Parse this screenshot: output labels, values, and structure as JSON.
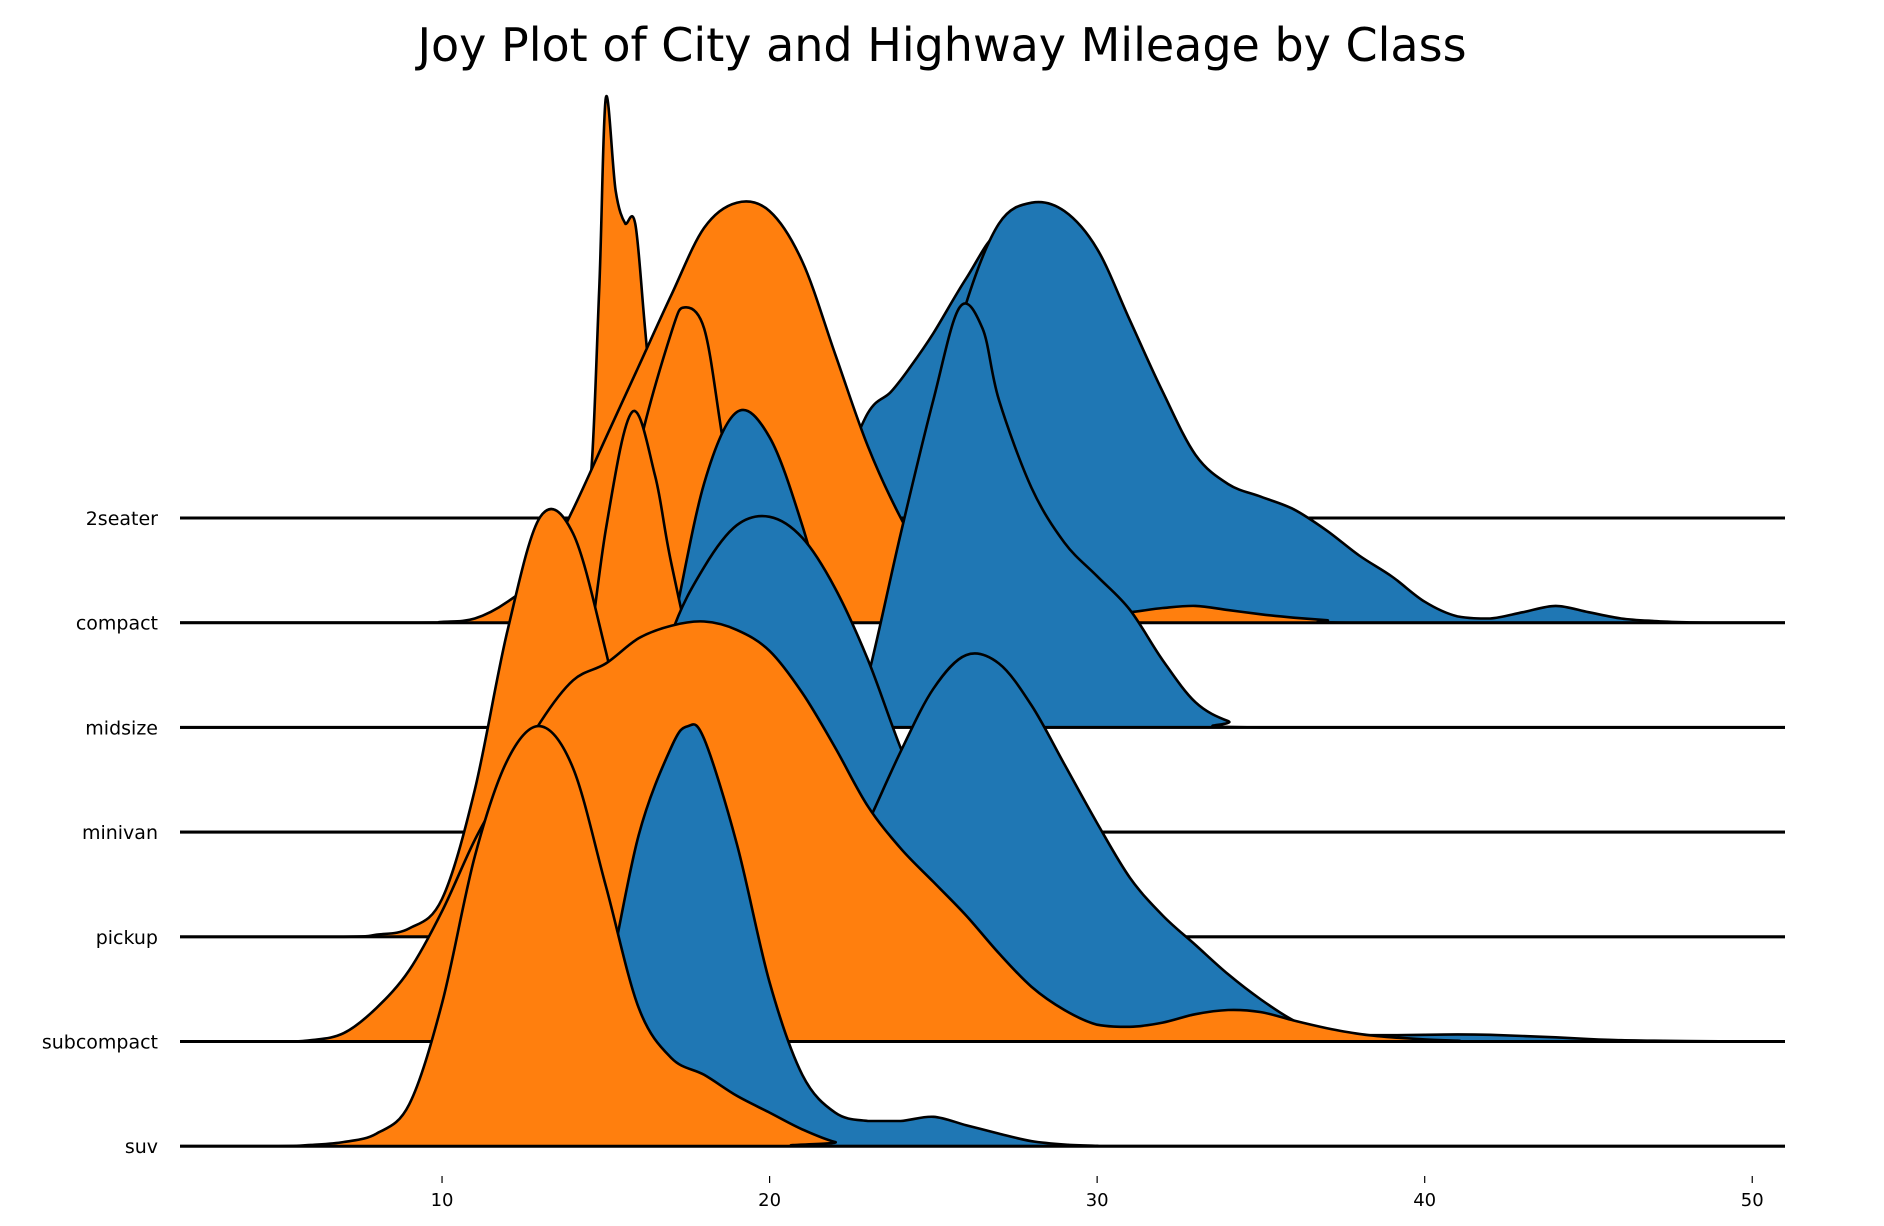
{
  "chart_data": {
    "type": "area",
    "title": "Joy Plot of City and Highway Mileage by Class",
    "xlabel": "",
    "ylabel": "",
    "xlim": [
      2,
      51
    ],
    "x_ticks": [
      10,
      20,
      30,
      40,
      50
    ],
    "grid": false,
    "legend": "none",
    "colors": {
      "cty": "#ff7f0e",
      "hwy": "#1f77b4",
      "line": "#000000"
    },
    "categories": [
      "2seater",
      "compact",
      "midsize",
      "minivan",
      "pickup",
      "subcompact",
      "suv"
    ],
    "series": [
      {
        "category": "2seater",
        "cty": [
          [
            2,
            0
          ],
          [
            14,
            0
          ],
          [
            14.5,
            0.06
          ],
          [
            14.8,
            0.55
          ],
          [
            15,
            1.0
          ],
          [
            15.3,
            0.78
          ],
          [
            15.6,
            0.7
          ],
          [
            15.9,
            0.7
          ],
          [
            16.2,
            0.45
          ],
          [
            16.6,
            0.12
          ],
          [
            17,
            0.03
          ],
          [
            18,
            0
          ],
          [
            51,
            0
          ]
        ],
        "hwy": [
          [
            2,
            0
          ],
          [
            21,
            0
          ],
          [
            22,
            0.08
          ],
          [
            23,
            0.25
          ],
          [
            23.7,
            0.3
          ],
          [
            24.3,
            0.36
          ],
          [
            25,
            0.44
          ],
          [
            26,
            0.57
          ],
          [
            27,
            0.68
          ],
          [
            28,
            0.64
          ],
          [
            29,
            0.5
          ],
          [
            30,
            0.28
          ],
          [
            31,
            0.08
          ],
          [
            32,
            0.02
          ],
          [
            33,
            0
          ],
          [
            51,
            0
          ]
        ]
      },
      {
        "category": "compact",
        "cty": [
          [
            2,
            0
          ],
          [
            9,
            0
          ],
          [
            10,
            0.002
          ],
          [
            11,
            0.01
          ],
          [
            12,
            0.05
          ],
          [
            13,
            0.12
          ],
          [
            14,
            0.27
          ],
          [
            15,
            0.44
          ],
          [
            16,
            0.61
          ],
          [
            17,
            0.78
          ],
          [
            18,
            0.94
          ],
          [
            19,
            1.0
          ],
          [
            20,
            0.98
          ],
          [
            21,
            0.86
          ],
          [
            22,
            0.64
          ],
          [
            23,
            0.42
          ],
          [
            24,
            0.25
          ],
          [
            25,
            0.12
          ],
          [
            26,
            0.06
          ],
          [
            27,
            0.035
          ],
          [
            28,
            0.025
          ],
          [
            29,
            0.02
          ],
          [
            30,
            0.02
          ],
          [
            31,
            0.025
          ],
          [
            32,
            0.035
          ],
          [
            33,
            0.04
          ],
          [
            34,
            0.03
          ],
          [
            35,
            0.02
          ],
          [
            36,
            0.012
          ],
          [
            37,
            0.006
          ],
          [
            38,
            0
          ],
          [
            51,
            0
          ]
        ],
        "hwy": [
          [
            2,
            0
          ],
          [
            22,
            0
          ],
          [
            23,
            0.03
          ],
          [
            24,
            0.14
          ],
          [
            25,
            0.46
          ],
          [
            26,
            0.76
          ],
          [
            27,
            0.95
          ],
          [
            28,
            1.0
          ],
          [
            29,
            0.98
          ],
          [
            30,
            0.89
          ],
          [
            31,
            0.72
          ],
          [
            32,
            0.55
          ],
          [
            33,
            0.4
          ],
          [
            34,
            0.33
          ],
          [
            35,
            0.3
          ],
          [
            36,
            0.27
          ],
          [
            37,
            0.22
          ],
          [
            38,
            0.16
          ],
          [
            39,
            0.11
          ],
          [
            40,
            0.05
          ],
          [
            41,
            0.015
          ],
          [
            42,
            0.01
          ],
          [
            43,
            0.025
          ],
          [
            44,
            0.04
          ],
          [
            45,
            0.025
          ],
          [
            46,
            0.01
          ],
          [
            47,
            0.004
          ],
          [
            48,
            0.001
          ],
          [
            49,
            0
          ],
          [
            51,
            0
          ]
        ]
      },
      {
        "category": "midsize",
        "cty": [
          [
            2,
            0
          ],
          [
            14,
            0
          ],
          [
            14.5,
            0.05
          ],
          [
            15,
            0.24
          ],
          [
            16,
            0.66
          ],
          [
            17,
            0.94
          ],
          [
            17.4,
            1.0
          ],
          [
            18,
            0.95
          ],
          [
            18.5,
            0.72
          ],
          [
            19,
            0.45
          ],
          [
            19.5,
            0.31
          ],
          [
            20,
            0.27
          ],
          [
            20.5,
            0.2
          ],
          [
            21,
            0.1
          ],
          [
            22,
            0.02
          ],
          [
            23,
            0
          ],
          [
            51,
            0
          ]
        ],
        "hwy": [
          [
            2,
            0
          ],
          [
            22,
            0
          ],
          [
            22.5,
            0.03
          ],
          [
            23,
            0.12
          ],
          [
            24,
            0.46
          ],
          [
            25,
            0.78
          ],
          [
            25.8,
            1.0
          ],
          [
            26.5,
            0.95
          ],
          [
            27,
            0.78
          ],
          [
            28,
            0.57
          ],
          [
            29,
            0.44
          ],
          [
            30,
            0.36
          ],
          [
            31,
            0.28
          ],
          [
            32,
            0.16
          ],
          [
            33,
            0.06
          ],
          [
            34,
            0.015
          ],
          [
            35,
            0
          ],
          [
            51,
            0
          ]
        ]
      },
      {
        "category": "minivan",
        "cty": [
          [
            2,
            0
          ],
          [
            12,
            0
          ],
          [
            13,
            0.01
          ],
          [
            14,
            0.17
          ],
          [
            15,
            0.72
          ],
          [
            15.8,
            1.0
          ],
          [
            16.5,
            0.85
          ],
          [
            17,
            0.64
          ],
          [
            18,
            0.3
          ],
          [
            19,
            0.09
          ],
          [
            20,
            0.02
          ],
          [
            21,
            0
          ],
          [
            51,
            0
          ]
        ],
        "hwy": [
          [
            2,
            0
          ],
          [
            15,
            0
          ],
          [
            16,
            0.14
          ],
          [
            17,
            0.47
          ],
          [
            18,
            0.83
          ],
          [
            19,
            1.0
          ],
          [
            20,
            0.94
          ],
          [
            21,
            0.73
          ],
          [
            22,
            0.45
          ],
          [
            23,
            0.22
          ],
          [
            24,
            0.08
          ],
          [
            25,
            0.02
          ],
          [
            26,
            0
          ],
          [
            51,
            0
          ]
        ]
      },
      {
        "category": "pickup",
        "cty": [
          [
            2,
            0
          ],
          [
            7,
            0
          ],
          [
            8,
            0.005
          ],
          [
            9,
            0.02
          ],
          [
            10,
            0.09
          ],
          [
            11,
            0.35
          ],
          [
            12,
            0.73
          ],
          [
            13,
            1.0
          ],
          [
            14,
            0.96
          ],
          [
            15,
            0.68
          ],
          [
            16,
            0.33
          ],
          [
            17,
            0.11
          ],
          [
            18,
            0.03
          ],
          [
            19,
            0.01
          ],
          [
            20,
            0
          ],
          [
            51,
            0
          ]
        ],
        "hwy": [
          [
            2,
            0
          ],
          [
            13,
            0
          ],
          [
            14,
            0.02
          ],
          [
            15,
            0.15
          ],
          [
            16,
            0.43
          ],
          [
            17,
            0.72
          ],
          [
            18,
            0.88
          ],
          [
            19,
            0.98
          ],
          [
            20,
            1.0
          ],
          [
            21,
            0.95
          ],
          [
            22,
            0.83
          ],
          [
            23,
            0.66
          ],
          [
            24,
            0.45
          ],
          [
            25,
            0.27
          ],
          [
            26,
            0.15
          ],
          [
            27,
            0.08
          ],
          [
            28,
            0.04
          ],
          [
            29,
            0.015
          ],
          [
            30,
            0
          ],
          [
            51,
            0
          ]
        ]
      },
      {
        "category": "subcompact",
        "cty": [
          [
            2,
            0
          ],
          [
            5,
            0
          ],
          [
            6,
            0.003
          ],
          [
            7,
            0.02
          ],
          [
            8,
            0.08
          ],
          [
            9,
            0.17
          ],
          [
            10,
            0.31
          ],
          [
            11,
            0.48
          ],
          [
            12,
            0.62
          ],
          [
            13,
            0.76
          ],
          [
            14,
            0.86
          ],
          [
            15,
            0.9
          ],
          [
            16,
            0.96
          ],
          [
            17,
            0.99
          ],
          [
            18,
            1.0
          ],
          [
            19,
            0.98
          ],
          [
            20,
            0.93
          ],
          [
            21,
            0.83
          ],
          [
            22,
            0.7
          ],
          [
            23,
            0.56
          ],
          [
            24,
            0.46
          ],
          [
            25,
            0.38
          ],
          [
            26,
            0.3
          ],
          [
            27,
            0.21
          ],
          [
            28,
            0.13
          ],
          [
            29,
            0.075
          ],
          [
            30,
            0.04
          ],
          [
            31,
            0.035
          ],
          [
            32,
            0.045
          ],
          [
            33,
            0.065
          ],
          [
            34,
            0.075
          ],
          [
            35,
            0.07
          ],
          [
            36,
            0.05
          ],
          [
            37,
            0.032
          ],
          [
            38,
            0.018
          ],
          [
            39,
            0.01
          ],
          [
            40,
            0.005
          ],
          [
            41,
            0.002
          ],
          [
            42,
            0
          ],
          [
            51,
            0
          ]
        ],
        "hwy": [
          [
            2,
            0
          ],
          [
            18,
            0
          ],
          [
            19,
            0.03
          ],
          [
            20,
            0.1
          ],
          [
            21,
            0.22
          ],
          [
            22,
            0.36
          ],
          [
            23,
            0.52
          ],
          [
            24,
            0.69
          ],
          [
            25,
            0.84
          ],
          [
            26,
            0.92
          ],
          [
            27,
            0.9
          ],
          [
            28,
            0.8
          ],
          [
            29,
            0.66
          ],
          [
            30,
            0.52
          ],
          [
            31,
            0.39
          ],
          [
            32,
            0.3
          ],
          [
            33,
            0.23
          ],
          [
            34,
            0.16
          ],
          [
            35,
            0.1
          ],
          [
            36,
            0.05
          ],
          [
            37,
            0.02
          ],
          [
            38,
            0.015
          ],
          [
            39,
            0.015
          ],
          [
            40,
            0.016
          ],
          [
            41,
            0.017
          ],
          [
            42,
            0.016
          ],
          [
            43,
            0.013
          ],
          [
            44,
            0.01
          ],
          [
            45,
            0.006
          ],
          [
            46,
            0.003
          ],
          [
            47,
            0.002
          ],
          [
            48,
            0.001
          ],
          [
            50,
            0
          ],
          [
            51,
            0
          ]
        ]
      },
      {
        "category": "suv",
        "cty": [
          [
            2,
            0
          ],
          [
            5,
            0
          ],
          [
            6,
            0.003
          ],
          [
            7,
            0.01
          ],
          [
            8,
            0.03
          ],
          [
            9,
            0.1
          ],
          [
            10,
            0.34
          ],
          [
            11,
            0.69
          ],
          [
            12,
            0.92
          ],
          [
            13,
            1.0
          ],
          [
            14,
            0.9
          ],
          [
            15,
            0.62
          ],
          [
            16,
            0.33
          ],
          [
            17,
            0.21
          ],
          [
            18,
            0.17
          ],
          [
            19,
            0.12
          ],
          [
            20,
            0.08
          ],
          [
            21,
            0.04
          ],
          [
            22,
            0.01
          ],
          [
            23,
            0
          ],
          [
            51,
            0
          ]
        ],
        "hwy": [
          [
            2,
            0
          ],
          [
            11,
            0
          ],
          [
            12,
            0.01
          ],
          [
            13,
            0.03
          ],
          [
            14,
            0.1
          ],
          [
            15,
            0.37
          ],
          [
            16,
            0.74
          ],
          [
            17,
            0.95
          ],
          [
            17.5,
            1.0
          ],
          [
            18,
            0.97
          ],
          [
            19,
            0.72
          ],
          [
            20,
            0.39
          ],
          [
            21,
            0.17
          ],
          [
            22,
            0.08
          ],
          [
            23,
            0.06
          ],
          [
            24,
            0.06
          ],
          [
            25,
            0.07
          ],
          [
            26,
            0.05
          ],
          [
            27,
            0.03
          ],
          [
            28,
            0.012
          ],
          [
            29,
            0.004
          ],
          [
            30,
            0.001
          ],
          [
            31,
            0
          ],
          [
            51,
            0
          ]
        ]
      }
    ]
  }
}
